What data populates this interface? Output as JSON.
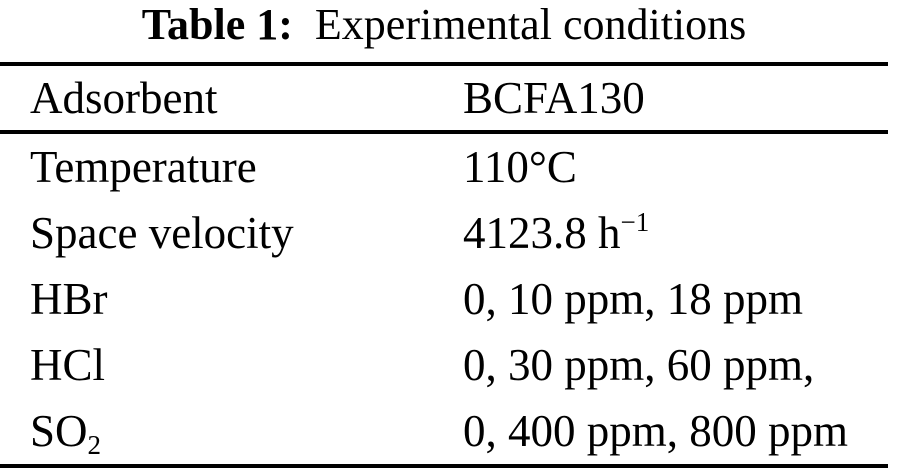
{
  "caption": {
    "label": "Table 1:",
    "title": "Experimental conditions"
  },
  "table": {
    "header": {
      "param": "Adsorbent",
      "value": "BCFA130"
    },
    "rows": [
      {
        "param": "Temperature",
        "value": "110°C"
      },
      {
        "param": "Space velocity",
        "value": "4123.8 h",
        "value_sup": "−1"
      },
      {
        "param": "HBr",
        "value": "0, 10 ppm, 18 ppm"
      },
      {
        "param": "HCl",
        "value": "0, 30 ppm, 60 ppm,"
      },
      {
        "param": "SO",
        "param_sub": "2",
        "value": "0, 400 ppm, 800 ppm"
      }
    ]
  },
  "colors": {
    "text": "#000000",
    "background": "#ffffff",
    "rule": "#000000"
  }
}
